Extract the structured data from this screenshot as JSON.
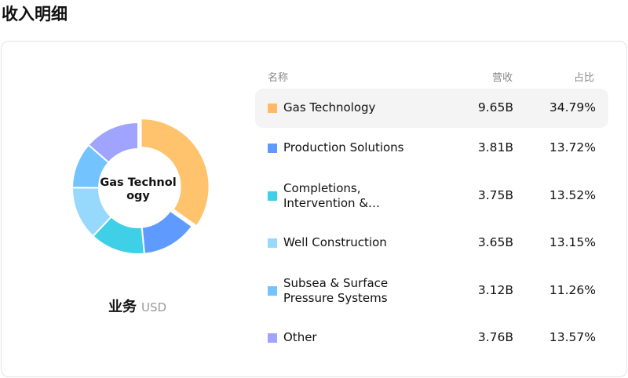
{
  "title": "收入明细",
  "caption": {
    "main": "业务",
    "unit": "USD"
  },
  "center_label": "Gas Technology",
  "headers": {
    "name": "名称",
    "revenue": "营收",
    "share": "占比"
  },
  "chart_data": {
    "type": "pie",
    "donut": true,
    "categories": [
      "Gas Technology",
      "Production Solutions",
      "Completions, Intervention &…",
      "Well Construction",
      "Subsea & Surface Pressure Systems",
      "Other"
    ],
    "values": [
      34.79,
      13.72,
      13.52,
      13.15,
      11.26,
      13.57
    ],
    "colors": [
      "#FFC36E",
      "#5F9BFF",
      "#3FCFE6",
      "#97D9FD",
      "#73C3FE",
      "#A0A4FE"
    ],
    "highlighted": "Gas Technology"
  },
  "rows": [
    {
      "name": "Gas Technology",
      "revenue": "9.65B",
      "share": "34.79%",
      "color": "#FFB967"
    },
    {
      "name": "Production Solutions",
      "revenue": "3.81B",
      "share": "13.72%",
      "color": "#5F9BFF"
    },
    {
      "name": "Completions, Intervention &…",
      "revenue": "3.75B",
      "share": "13.52%",
      "color": "#3FCFE6"
    },
    {
      "name": "Well Construction",
      "revenue": "3.65B",
      "share": "13.15%",
      "color": "#97D9FD"
    },
    {
      "name": "Subsea & Surface Pressure Systems",
      "revenue": "3.12B",
      "share": "11.26%",
      "color": "#73C3FE"
    },
    {
      "name": "Other",
      "revenue": "3.76B",
      "share": "13.57%",
      "color": "#A0A4FE"
    }
  ]
}
